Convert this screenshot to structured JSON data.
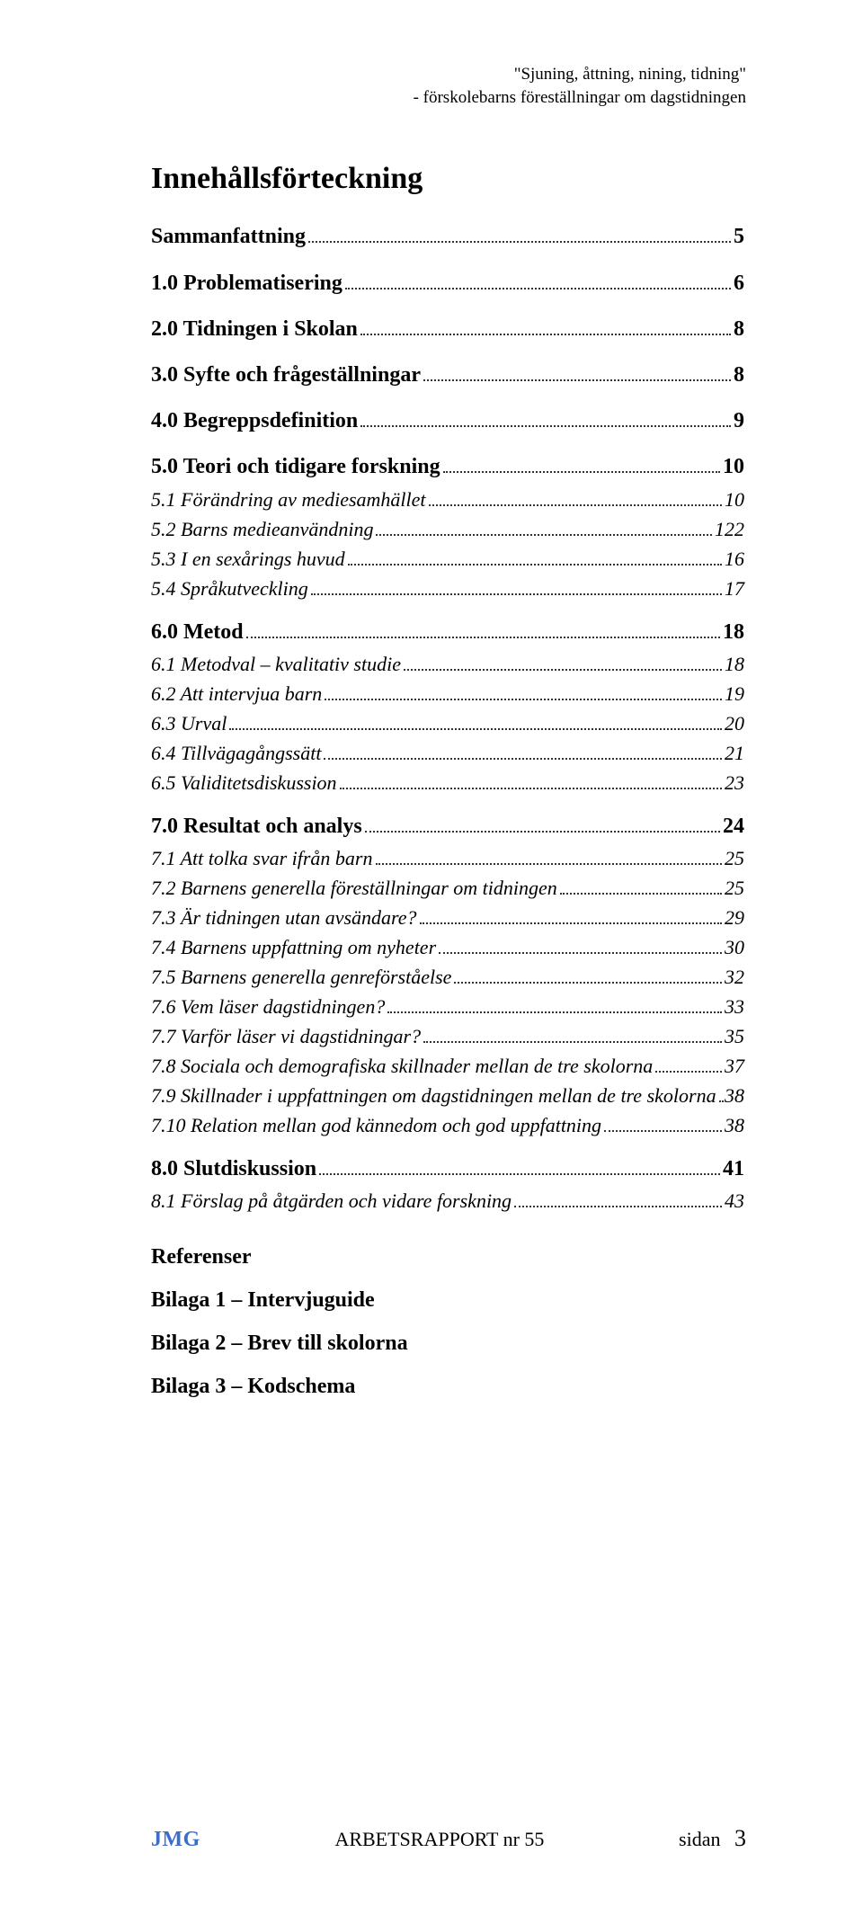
{
  "running_head": {
    "line1": "\"Sjuning, åttning, nining, tidning\"",
    "line2": "- förskolebarns föreställningar om dagstidningen"
  },
  "toc_title": "Innehållsförteckning",
  "toc": [
    {
      "level": 1,
      "label": "Sammanfattning",
      "page": "5"
    },
    {
      "level": 1,
      "label": "1.0 Problematisering",
      "page": "6"
    },
    {
      "level": 1,
      "label": "2.0 Tidningen i Skolan",
      "page": "8"
    },
    {
      "level": 1,
      "label": "3.0 Syfte och frågeställningar",
      "page": "8"
    },
    {
      "level": 1,
      "label": "4.0 Begreppsdefinition",
      "page": "9"
    },
    {
      "level": 1,
      "label": "5.0 Teori och tidigare forskning",
      "page": "10"
    },
    {
      "level": 2,
      "label": "5.1 Förändring av mediesamhället",
      "page": "10"
    },
    {
      "level": 2,
      "label": "5.2 Barns medieanvändning",
      "page": "122"
    },
    {
      "level": 2,
      "label": "5.3 I en sexårings huvud",
      "page": "16"
    },
    {
      "level": 2,
      "label": "5.4 Språkutveckling",
      "page": "17"
    },
    {
      "level": 1,
      "label": "6.0 Metod",
      "page": "18"
    },
    {
      "level": 2,
      "label": "6.1 Metodval – kvalitativ studie",
      "page": "18"
    },
    {
      "level": 2,
      "label": "6.2 Att intervjua barn",
      "page": "19"
    },
    {
      "level": 2,
      "label": "6.3 Urval",
      "page": "20"
    },
    {
      "level": 2,
      "label": "6.4 Tillvägagångssätt",
      "page": "21"
    },
    {
      "level": 2,
      "label": "6.5 Validitetsdiskussion",
      "page": "23"
    },
    {
      "level": 1,
      "label": "7.0 Resultat och analys",
      "page": "24"
    },
    {
      "level": 2,
      "label": "7.1 Att tolka svar ifrån barn",
      "page": "25"
    },
    {
      "level": 2,
      "label": "7.2 Barnens generella föreställningar om tidningen",
      "page": "25"
    },
    {
      "level": 2,
      "label": "7.3 Är tidningen utan avsändare?",
      "page": "29"
    },
    {
      "level": 2,
      "label": "7.4 Barnens uppfattning om nyheter",
      "page": "30"
    },
    {
      "level": 2,
      "label": "7.5 Barnens generella genreförståelse",
      "page": "32"
    },
    {
      "level": 2,
      "label": "7.6 Vem läser dagstidningen?",
      "page": "33"
    },
    {
      "level": 2,
      "label": "7.7 Varför läser vi dagstidningar?",
      "page": "35"
    },
    {
      "level": 2,
      "label": "7.8 Sociala och demografiska skillnader mellan de tre skolorna",
      "page": "37"
    },
    {
      "level": 2,
      "label": "7.9 Skillnader i uppfattningen om dagstidningen mellan de tre skolorna",
      "page": "38"
    },
    {
      "level": 2,
      "label": "7.10 Relation mellan god kännedom och god uppfattning",
      "page": "38"
    },
    {
      "level": 1,
      "label": "8.0 Slutdiskussion",
      "page": "41"
    },
    {
      "level": 2,
      "label": "8.1 Förslag på åtgärden och vidare forskning",
      "page": "43"
    }
  ],
  "plain_entries": [
    "Referenser",
    "Bilaga 1 – Intervjuguide",
    "Bilaga 2 – Brev till skolorna",
    "Bilaga 3 – Kodschema"
  ],
  "footer": {
    "brand": "JMG",
    "center": "ARBETSRAPPORT nr 55",
    "side_label": "sidan",
    "page_number": "3",
    "brand_color": "#3d6dcc"
  }
}
